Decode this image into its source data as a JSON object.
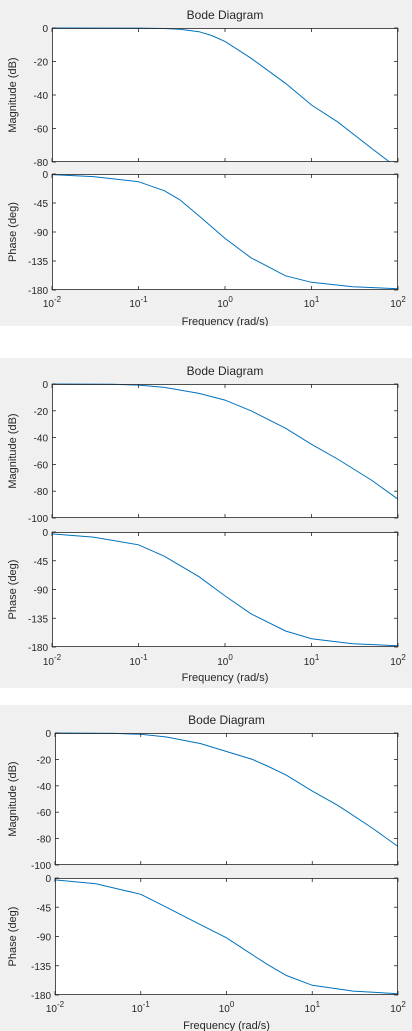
{
  "chart_data": [
    {
      "type": "line",
      "title": "Bode Diagram",
      "xlabel": "Frequency  (rad/s)",
      "x_scale": "log",
      "xlim": [
        0.01,
        100
      ],
      "x_ticks": [
        0.01,
        0.1,
        1,
        10,
        100
      ],
      "x_tick_labels": [
        [
          "10",
          "-2"
        ],
        [
          "10",
          "-1"
        ],
        [
          "10",
          "0"
        ],
        [
          "10",
          "1"
        ],
        [
          "10",
          "2"
        ]
      ],
      "line_color": "#0072bd",
      "subplots": [
        {
          "ylabel": "Magnitude (dB)",
          "ylim": [
            -80,
            0
          ],
          "y_ticks": [
            0,
            -20,
            -40,
            -60,
            -80
          ],
          "y_tick_labels": [
            "0",
            "-20",
            "-40",
            "-60",
            "-80"
          ],
          "x": [
            0.01,
            0.1,
            0.2,
            0.3,
            0.5,
            0.7,
            1,
            2,
            5,
            10,
            20,
            50,
            80
          ],
          "y": [
            0,
            -0.05,
            -0.3,
            -0.8,
            -2.2,
            -4.5,
            -8,
            -18,
            -33,
            -46,
            -56,
            -72,
            -80
          ]
        },
        {
          "ylabel": "Phase (deg)",
          "ylim": [
            -180,
            0
          ],
          "y_ticks": [
            0,
            -45,
            -90,
            -135,
            -180
          ],
          "y_tick_labels": [
            "0",
            "-45",
            "-90",
            "-135",
            "-180"
          ],
          "x": [
            0.01,
            0.03,
            0.1,
            0.2,
            0.3,
            0.5,
            0.7,
            1,
            2,
            5,
            10,
            30,
            100
          ],
          "y": [
            -1,
            -4,
            -12,
            -26,
            -40,
            -65,
            -82,
            -100,
            -130,
            -158,
            -168,
            -175,
            -178
          ]
        }
      ]
    },
    {
      "type": "line",
      "title": "Bode Diagram",
      "xlabel": "Frequency  (rad/s)",
      "x_scale": "log",
      "xlim": [
        0.01,
        100
      ],
      "x_ticks": [
        0.01,
        0.1,
        1,
        10,
        100
      ],
      "x_tick_labels": [
        [
          "10",
          "-2"
        ],
        [
          "10",
          "-1"
        ],
        [
          "10",
          "0"
        ],
        [
          "10",
          "1"
        ],
        [
          "10",
          "2"
        ]
      ],
      "line_color": "#0072bd",
      "subplots": [
        {
          "ylabel": "Magnitude (dB)",
          "ylim": [
            -100,
            0
          ],
          "y_ticks": [
            0,
            -20,
            -40,
            -60,
            -80,
            -100
          ],
          "y_tick_labels": [
            "0",
            "-20",
            "-40",
            "-60",
            "-80",
            "-100"
          ],
          "x": [
            0.01,
            0.05,
            0.1,
            0.2,
            0.5,
            1,
            2,
            5,
            10,
            20,
            50,
            100
          ],
          "y": [
            0,
            -0.2,
            -0.8,
            -2.5,
            -7,
            -12,
            -20,
            -33,
            -45,
            -56,
            -72,
            -86
          ]
        },
        {
          "ylabel": "Phase (deg)",
          "ylim": [
            -180,
            0
          ],
          "y_ticks": [
            0,
            -45,
            -90,
            -135,
            -180
          ],
          "y_tick_labels": [
            "0",
            "-45",
            "-90",
            "-135",
            "-180"
          ],
          "x": [
            0.01,
            0.03,
            0.1,
            0.2,
            0.5,
            1,
            2,
            5,
            10,
            30,
            100
          ],
          "y": [
            -3,
            -8,
            -20,
            -38,
            -70,
            -100,
            -128,
            -155,
            -167,
            -175,
            -178
          ]
        }
      ]
    },
    {
      "type": "line",
      "title": "Bode Diagram",
      "xlabel": "Frequency  (rad/s)",
      "x_scale": "log",
      "xlim": [
        0.01,
        100
      ],
      "x_ticks": [
        0.01,
        0.1,
        1,
        10,
        100
      ],
      "x_tick_labels": [
        [
          "10",
          "-2"
        ],
        [
          "10",
          "-1"
        ],
        [
          "10",
          "0"
        ],
        [
          "10",
          "1"
        ],
        [
          "10",
          "2"
        ]
      ],
      "line_color": "#0072bd",
      "subplots": [
        {
          "ylabel": "Magnitude (dB)",
          "ylim": [
            -100,
            0
          ],
          "y_ticks": [
            0,
            -20,
            -40,
            -60,
            -80,
            -100
          ],
          "y_tick_labels": [
            "0",
            "-20",
            "-40",
            "-60",
            "-80",
            "-100"
          ],
          "x": [
            0.01,
            0.05,
            0.1,
            0.2,
            0.5,
            1,
            2,
            3,
            5,
            10,
            20,
            50,
            100
          ],
          "y": [
            0,
            -0.3,
            -1,
            -3,
            -8,
            -14,
            -20,
            -25,
            -32,
            -44,
            -55,
            -72,
            -86
          ]
        },
        {
          "ylabel": "Phase (deg)",
          "ylim": [
            -180,
            0
          ],
          "y_ticks": [
            0,
            -45,
            -90,
            -135,
            -180
          ],
          "y_tick_labels": [
            "0",
            "-45",
            "-90",
            "-135",
            "-180"
          ],
          "x": [
            0.01,
            0.03,
            0.1,
            0.2,
            0.5,
            1,
            2,
            3,
            5,
            10,
            30,
            100
          ],
          "y": [
            -3,
            -9,
            -25,
            -45,
            -72,
            -92,
            -118,
            -133,
            -150,
            -165,
            -174,
            -178
          ]
        }
      ]
    }
  ]
}
